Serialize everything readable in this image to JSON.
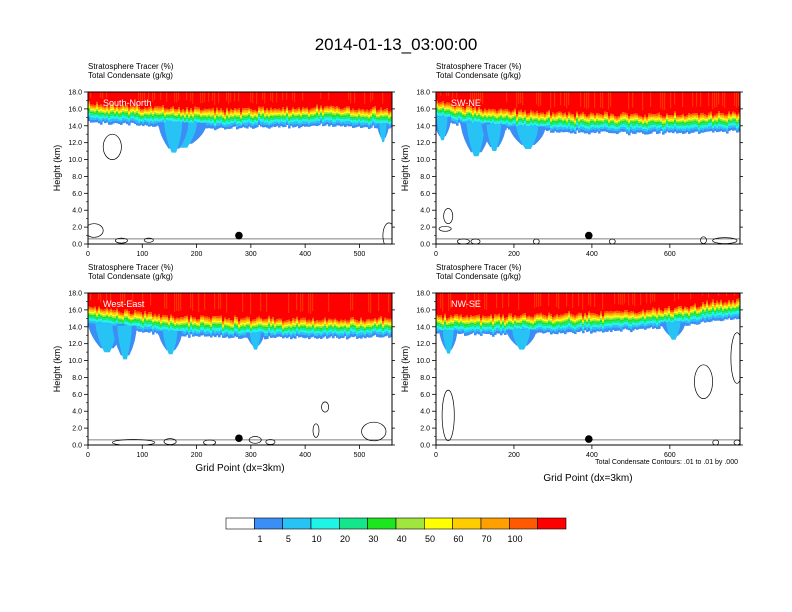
{
  "title": "2014-01-13_03:00:00",
  "colorbar": {
    "labels": [
      "1",
      "5",
      "10",
      "20",
      "30",
      "40",
      "50",
      "60",
      "70",
      "100"
    ],
    "colors": [
      "#ffffff",
      "#3a8ef5",
      "#28c3f5",
      "#1ef5e6",
      "#14e68c",
      "#1ee61e",
      "#a0e63c",
      "#ffff00",
      "#ffcc00",
      "#ffa000",
      "#ff5a00",
      "#ff0000"
    ]
  },
  "contour_note": "Total Condensate Contours: .01 to .01 by .000",
  "chart_data": [
    {
      "type": "heatmap",
      "panel_label": "South-North",
      "title_lines": [
        "Stratosphere Tracer   (%)",
        "Total Condensate   (g/kg)"
      ],
      "ylabel": "Height (km)",
      "xlabel": "",
      "xlim": [
        0,
        560
      ],
      "ylim": [
        0,
        18
      ],
      "xticks": [
        "0",
        "100",
        "200",
        "300",
        "400",
        "500"
      ],
      "xtick_values": [
        0,
        100,
        200,
        300,
        400,
        500
      ],
      "yticks": [
        "0.0",
        "2.0",
        "4.0",
        "6.0",
        "8.0",
        "10.0",
        "12.0",
        "14.0",
        "16.0",
        "18.0"
      ],
      "marker": {
        "x": 278,
        "y": 1.0
      }
    },
    {
      "type": "heatmap",
      "panel_label": "SW-NE",
      "title_lines": [
        "Stratosphere Tracer   (%)",
        "Total Condensate   (g/kg)"
      ],
      "ylabel": "Height (km)",
      "xlabel": "",
      "xlim": [
        0,
        780
      ],
      "ylim": [
        0,
        18
      ],
      "xticks": [
        "0",
        "200",
        "400",
        "600"
      ],
      "xtick_values": [
        0,
        200,
        400,
        600
      ],
      "yticks": [
        "0.0",
        "2.0",
        "4.0",
        "6.0",
        "8.0",
        "10.0",
        "12.0",
        "14.0",
        "16.0",
        "18.0"
      ],
      "marker": {
        "x": 392,
        "y": 1.0
      }
    },
    {
      "type": "heatmap",
      "panel_label": "West-East",
      "title_lines": [
        "Stratosphere Tracer   (%)",
        "Total Condensate   (g/kg)"
      ],
      "ylabel": "Height (km)",
      "xlabel": "Grid Point (dx=3km)",
      "xlim": [
        0,
        560
      ],
      "ylim": [
        0,
        18
      ],
      "xticks": [
        "0",
        "100",
        "200",
        "300",
        "400",
        "500"
      ],
      "xtick_values": [
        0,
        100,
        200,
        300,
        400,
        500
      ],
      "yticks": [
        "0.0",
        "2.0",
        "4.0",
        "6.0",
        "8.0",
        "10.0",
        "12.0",
        "14.0",
        "16.0",
        "18.0"
      ],
      "marker": {
        "x": 278,
        "y": 0.8
      }
    },
    {
      "type": "heatmap",
      "panel_label": "NW-SE",
      "title_lines": [
        "Stratosphere Tracer   (%)",
        "Total Condensate   (g/kg)"
      ],
      "ylabel": "Height (km)",
      "xlabel": "Grid Point (dx=3km)",
      "xlim": [
        0,
        780
      ],
      "ylim": [
        0,
        18
      ],
      "xticks": [
        "0",
        "200",
        "400",
        "600"
      ],
      "xtick_values": [
        0,
        200,
        400,
        600
      ],
      "yticks": [
        "0.0",
        "2.0",
        "4.0",
        "6.0",
        "8.0",
        "10.0",
        "12.0",
        "14.0",
        "16.0",
        "18.0"
      ],
      "marker": {
        "x": 392,
        "y": 0.7
      }
    }
  ]
}
